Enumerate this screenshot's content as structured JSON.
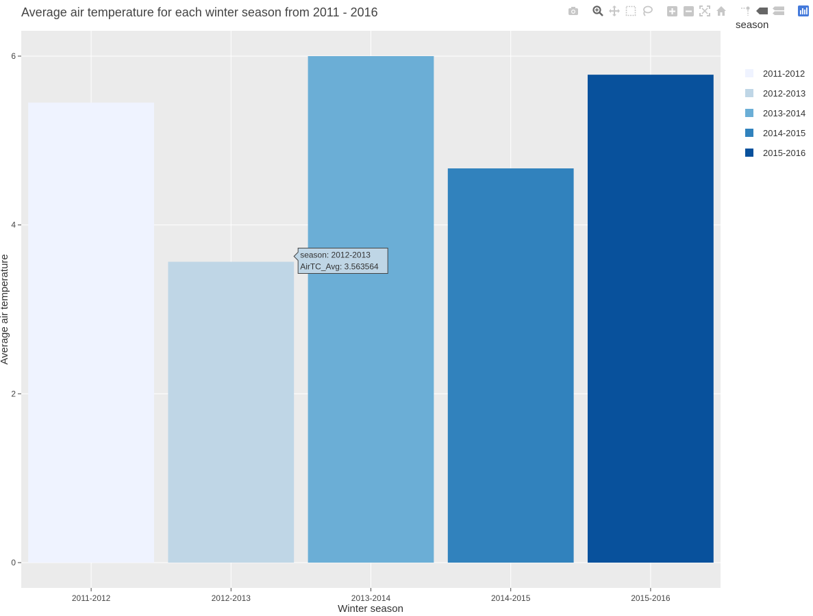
{
  "chart_data": {
    "type": "bar",
    "title": "Average air temperature for each winter season from 2011 - 2016",
    "xlabel": "Winter season",
    "ylabel": "Average air temperature",
    "categories": [
      "2011-2012",
      "2012-2013",
      "2013-2014",
      "2014-2015",
      "2015-2016"
    ],
    "values": [
      5.45,
      3.563564,
      6.0,
      4.67,
      5.78
    ],
    "colors": [
      "#eff3ff",
      "#bfd6e6",
      "#6baed6",
      "#3182bd",
      "#08519c"
    ],
    "ylim": [
      -0.3,
      6.3
    ],
    "yticks": [
      0,
      2,
      4,
      6
    ],
    "grid": true,
    "legend": {
      "title": "season",
      "placement": "right",
      "items": [
        "2011-2012",
        "2012-2013",
        "2013-2014",
        "2014-2015",
        "2015-2016"
      ]
    },
    "hover": {
      "category_index": 1,
      "line1": "season: 2012-2013",
      "line2": "AirTC_Avg: 3.563564"
    }
  },
  "colors": {
    "plot_background": "#ebebeb",
    "grid": "#ffffff",
    "modebar_icon": "#c7c7c7",
    "modebar_logo": "#447adb"
  },
  "modebar": [
    "camera-icon",
    "zoom-icon",
    "pan-icon",
    "box-select-icon",
    "lasso-icon",
    "zoom-in-icon",
    "zoom-out-icon",
    "autoscale-icon",
    "reset-axes-icon",
    "spike-lines-icon",
    "hover-closest-icon",
    "hover-compare-icon",
    "plotly-logo-icon"
  ]
}
